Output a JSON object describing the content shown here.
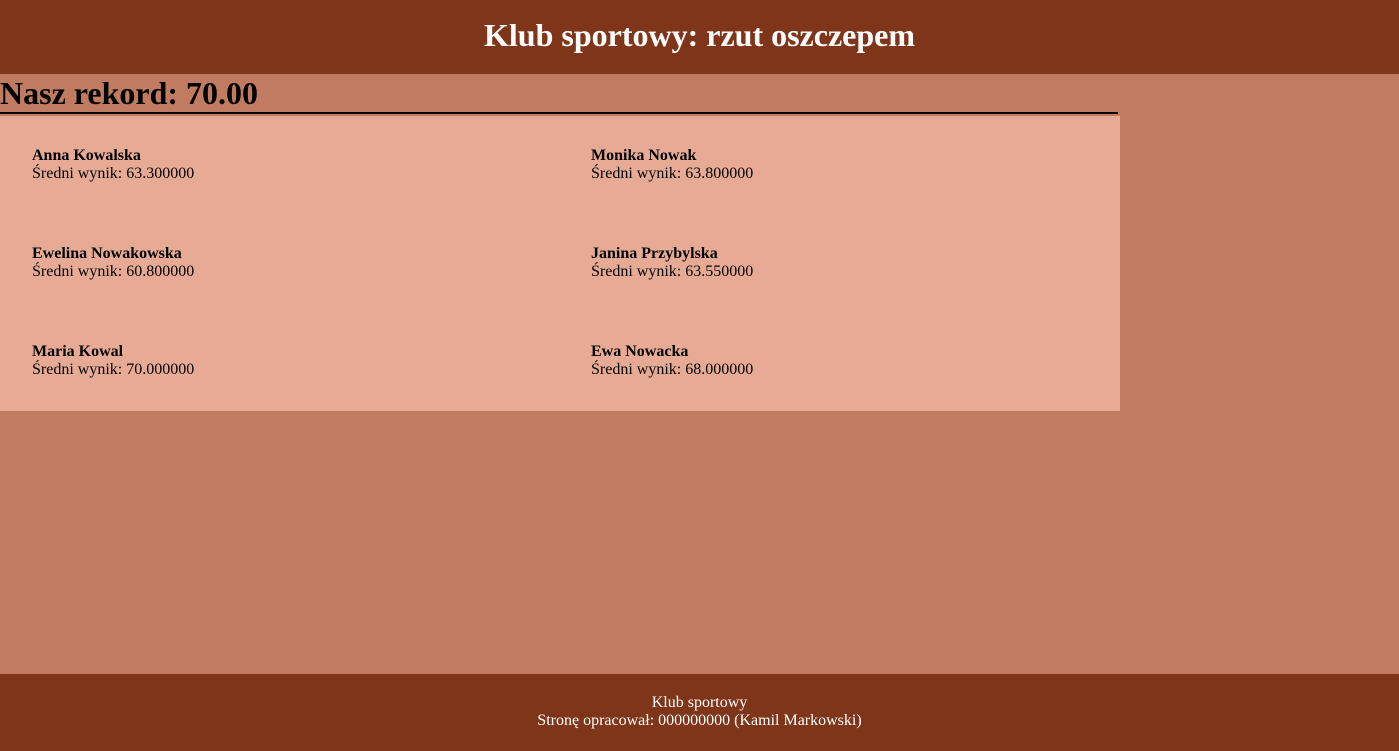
{
  "header": {
    "title": "Klub sportowy: rzut oszczepem"
  },
  "record": {
    "text": "Nasz rekord: 70.00"
  },
  "athletes": [
    {
      "name": "Anna Kowalska",
      "score": "Średni wynik: 63.300000"
    },
    {
      "name": "Monika Nowak",
      "score": "Średni wynik: 63.800000"
    },
    {
      "name": "Ewelina Nowakowska",
      "score": "Średni wynik: 60.800000"
    },
    {
      "name": "Janina Przybylska",
      "score": "Średni wynik: 63.550000"
    },
    {
      "name": "Maria Kowal",
      "score": "Średni wynik: 70.000000"
    },
    {
      "name": "Ewa Nowacka",
      "score": "Średni wynik: 68.000000"
    }
  ],
  "footer": {
    "line1": "Klub sportowy",
    "line2": "Stronę opracował: 000000000 (Kamil Markowski)"
  },
  "colors": {
    "header_bg": "#7f3519",
    "page_bg": "#c17b60",
    "panel_bg": "#e7ab95",
    "footer_bg": "#7f3519"
  }
}
